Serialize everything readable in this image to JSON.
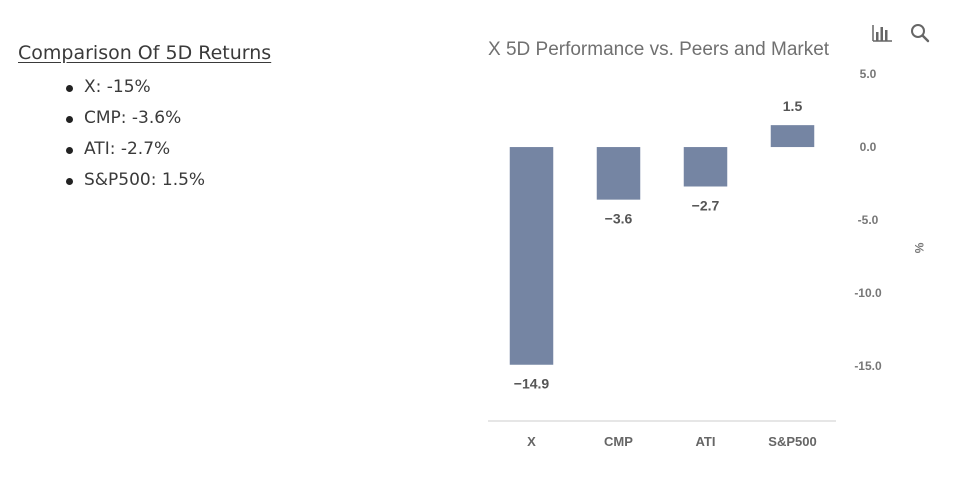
{
  "summary": {
    "title": "Comparison Of 5D Returns",
    "items": [
      "X: -15%",
      "CMP: -3.6%",
      "ATI: -2.7%",
      "S&P500: 1.5%"
    ]
  },
  "toolbar": {
    "chart_icon": "bar-chart-icon",
    "search_icon": "search-icon"
  },
  "colors": {
    "bar": "#7585a3",
    "axis": "#cccccc"
  },
  "chart_data": {
    "type": "bar",
    "title": "X 5D Performance vs. Peers and Market",
    "categories": [
      "X",
      "CMP",
      "ATI",
      "S&P500"
    ],
    "values": [
      -14.9,
      -3.6,
      -2.7,
      1.5
    ],
    "value_labels": [
      "−14.9",
      "−3.6",
      "−2.7",
      "1.5"
    ],
    "ylabel": "%",
    "yticks": [
      5,
      0,
      -5,
      -10,
      -15
    ],
    "ytick_labels": [
      "5.0",
      "0.0",
      "-5.0",
      "-10.0",
      "-15.0"
    ],
    "ylim": [
      -18.75,
      5
    ],
    "y_axis_position": "right",
    "grid": false,
    "legend": "none"
  }
}
